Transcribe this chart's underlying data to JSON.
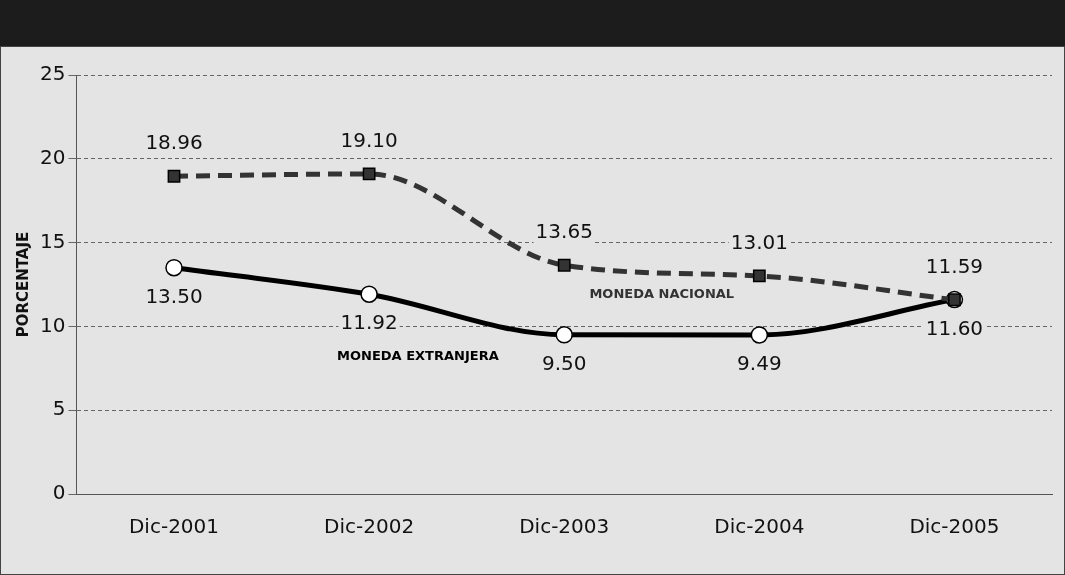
{
  "chart_data": {
    "type": "line",
    "ylabel": "PORCENTAJE",
    "categories": [
      "Dic-2001",
      "Dic-2002",
      "Dic-2003",
      "Dic-2004",
      "Dic-2005"
    ],
    "ylim": [
      0,
      25
    ],
    "yticks": [
      0,
      5,
      10,
      15,
      20,
      25
    ],
    "grid": "y",
    "legend": false,
    "series": [
      {
        "name": "MONEDA NACIONAL",
        "color": "#333333",
        "values": [
          18.96,
          19.1,
          13.65,
          13.01,
          11.59
        ],
        "value_labels": [
          "18.96",
          "19.10",
          "13.65",
          "13.01",
          "11.59"
        ],
        "marker": "square",
        "line_style": "dashed"
      },
      {
        "name": "MONEDA EXTRANJERA",
        "color": "#000000",
        "values": [
          13.5,
          11.92,
          9.5,
          9.49,
          11.6
        ],
        "value_labels": [
          "13.50",
          "11.92",
          "9.50",
          "9.49",
          "11.60"
        ],
        "marker": "circle",
        "line_style": "solid"
      }
    ]
  }
}
